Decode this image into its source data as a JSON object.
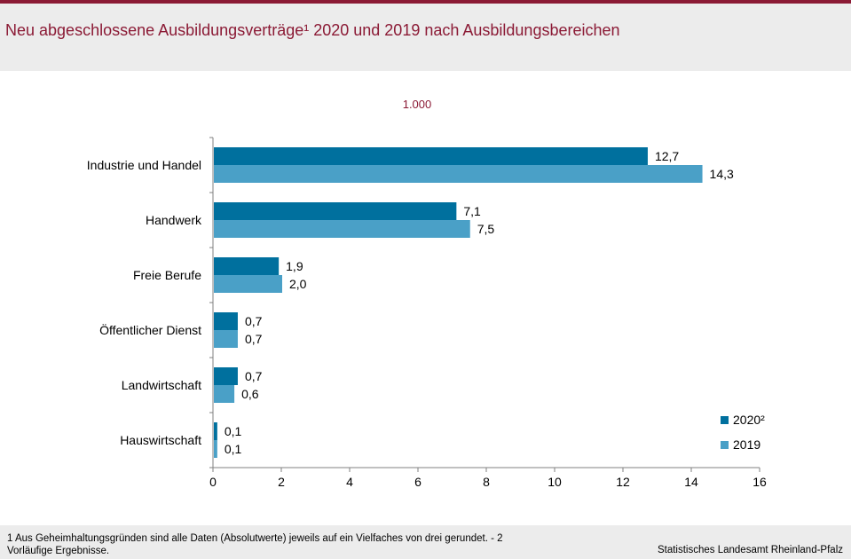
{
  "title": "Neu abgeschlossene Ausbildungsverträge¹ 2020 und 2019 nach Ausbildungsbereichen",
  "unit_label": "1.000",
  "footnote": "1 Aus Geheimhaltungsgründen  sind alle Daten (Absolutwerte)  jeweils auf ein Vielfaches  von  drei gerundet.  - 2 Vorläufige  Ergebnisse.",
  "source": "Statistisches Landesamt Rheinland-Pfalz",
  "colors": {
    "series_2020": "#00709e",
    "series_2019": "#4aa0c7",
    "accent": "#8b1a35"
  },
  "chart_data": {
    "type": "bar",
    "orientation": "horizontal",
    "categories": [
      "Industrie und Handel",
      "Handwerk",
      "Freie Berufe",
      "Öffentlicher Dienst",
      "Landwirtschaft",
      "Hauswirtschaft"
    ],
    "series": [
      {
        "name": "2020²",
        "values": [
          12.7,
          7.1,
          1.9,
          0.7,
          0.7,
          0.1
        ],
        "labels": [
          "12,7",
          "7,1",
          "1,9",
          "0,7",
          "0,7",
          "0,1"
        ]
      },
      {
        "name": "2019",
        "values": [
          14.3,
          7.5,
          2.0,
          0.7,
          0.6,
          0.1
        ],
        "labels": [
          "14,3",
          "7,5",
          "2,0",
          "0,7",
          "0,6",
          "0,1"
        ]
      }
    ],
    "xlim": [
      0,
      16
    ],
    "xticks": [
      0,
      2,
      4,
      6,
      8,
      10,
      12,
      14,
      16
    ],
    "grid": false,
    "legend_position": "bottom-right"
  }
}
